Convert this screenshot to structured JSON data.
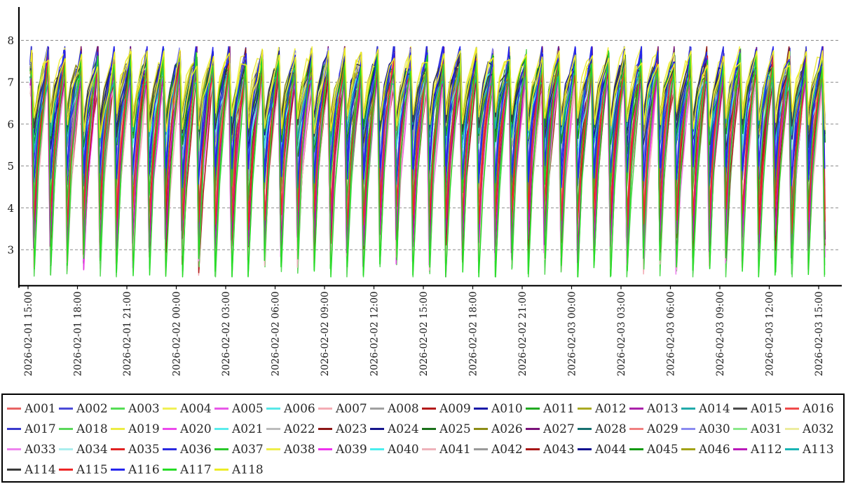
{
  "chart_data": {
    "type": "line",
    "title": "",
    "x_axis": {
      "start": "2026-02-01 15:00",
      "end": "2026-02-03 15:00",
      "tick_interval_hours": 3,
      "tick_labels": [
        "2026-02-01 15:00",
        "2026-02-01 18:00",
        "2026-02-01 21:00",
        "2026-02-02 00:00",
        "2026-02-02 03:00",
        "2026-02-02 06:00",
        "2026-02-02 09:00",
        "2026-02-02 12:00",
        "2026-02-02 15:00",
        "2026-02-02 18:00",
        "2026-02-02 21:00",
        "2026-02-03 00:00",
        "2026-02-03 03:00",
        "2026-02-03 06:00",
        "2026-02-03 09:00",
        "2026-02-03 12:00",
        "2026-02-03 15:00"
      ]
    },
    "y_axis": {
      "ticks": [
        8,
        7,
        6,
        5,
        4,
        3
      ],
      "range": [
        2.2,
        8.8
      ],
      "grid": "dashed"
    },
    "period_hours": 1,
    "total_hours": 48.4,
    "waveform": {
      "peak_at": 0.22,
      "trough_at": 0.36,
      "mid1_at": 0.62,
      "mid2_at": 0.92,
      "mid1_frac": 0.48,
      "mid2_frac": 0.78,
      "peak_jitter": 0.5,
      "trough_jitter": 0.55,
      "value_clamp": [
        2.35,
        7.85
      ]
    },
    "series": [
      {
        "name": "A001",
        "color": "#e86464",
        "peak": 7.35,
        "trough": 3.6
      },
      {
        "name": "A002",
        "color": "#4a4ad8",
        "peak": 7.75,
        "trough": 4.6
      },
      {
        "name": "A003",
        "color": "#55dd55",
        "peak": 7.3,
        "trough": 2.5
      },
      {
        "name": "A004",
        "color": "#f0f055",
        "peak": 7.65,
        "trough": 5.9
      },
      {
        "name": "A005",
        "color": "#e858e8",
        "peak": 7.2,
        "trough": 3.0
      },
      {
        "name": "A006",
        "color": "#58e8e8",
        "peak": 7.1,
        "trough": 5.6
      },
      {
        "name": "A007",
        "color": "#f4acb4",
        "peak": 7.0,
        "trough": 2.75
      },
      {
        "name": "A008",
        "color": "#a0a0a0",
        "peak": 7.15,
        "trough": 5.8
      },
      {
        "name": "A009",
        "color": "#b31a1a",
        "peak": 7.1,
        "trough": 3.0
      },
      {
        "name": "A010",
        "color": "#1a1aa8",
        "peak": 7.5,
        "trough": 5.9
      },
      {
        "name": "A011",
        "color": "#22aa22",
        "peak": 7.4,
        "trough": 5.7
      },
      {
        "name": "A012",
        "color": "#aaaa22",
        "peak": 7.3,
        "trough": 6.0
      },
      {
        "name": "A013",
        "color": "#aa22aa",
        "peak": 7.25,
        "trough": 3.2
      },
      {
        "name": "A014",
        "color": "#22aaaa",
        "peak": 7.2,
        "trough": 5.8
      },
      {
        "name": "A015",
        "color": "#4a4a4a",
        "peak": 7.3,
        "trough": 5.95
      },
      {
        "name": "A016",
        "color": "#f04a4a",
        "peak": 7.4,
        "trough": 3.9
      },
      {
        "name": "A017",
        "color": "#3a3acc",
        "peak": 7.7,
        "trough": 4.8
      },
      {
        "name": "A018",
        "color": "#5ad85a",
        "peak": 7.55,
        "trough": 2.6
      },
      {
        "name": "A019",
        "color": "#ecec44",
        "peak": 7.6,
        "trough": 6.1
      },
      {
        "name": "A020",
        "color": "#ec4aec",
        "peak": 7.3,
        "trough": 3.1
      },
      {
        "name": "A021",
        "color": "#5aecec",
        "peak": 7.15,
        "trough": 5.7
      },
      {
        "name": "A022",
        "color": "#bcbcbc",
        "peak": 7.2,
        "trough": 5.9
      },
      {
        "name": "A023",
        "color": "#8c1616",
        "peak": 7.65,
        "trough": 3.4
      },
      {
        "name": "A024",
        "color": "#16168c",
        "peak": 7.45,
        "trough": 5.85
      },
      {
        "name": "A025",
        "color": "#1a701a",
        "peak": 7.5,
        "trough": 5.75
      },
      {
        "name": "A026",
        "color": "#8c8c16",
        "peak": 7.35,
        "trough": 6.05
      },
      {
        "name": "A027",
        "color": "#7a127a",
        "peak": 7.7,
        "trough": 3.3
      },
      {
        "name": "A028",
        "color": "#167070",
        "peak": 7.25,
        "trough": 5.8
      },
      {
        "name": "A029",
        "color": "#f08080",
        "peak": 7.3,
        "trough": 3.7
      },
      {
        "name": "A030",
        "color": "#8a8af0",
        "peak": 7.6,
        "trough": 4.9
      },
      {
        "name": "A031",
        "color": "#8ae88a",
        "peak": 7.4,
        "trough": 5.6
      },
      {
        "name": "A032",
        "color": "#ecec9e",
        "peak": 7.5,
        "trough": 6.0
      },
      {
        "name": "A033",
        "color": "#ee84ee",
        "peak": 7.2,
        "trough": 2.9
      },
      {
        "name": "A034",
        "color": "#aaeeee",
        "peak": 7.1,
        "trough": 5.65
      },
      {
        "name": "A035",
        "color": "#e02222",
        "peak": 7.35,
        "trough": 3.5
      },
      {
        "name": "A036",
        "color": "#2a2ae0",
        "peak": 7.65,
        "trough": 4.7
      },
      {
        "name": "A037",
        "color": "#2ac82a",
        "peak": 7.45,
        "trough": 4.3
      },
      {
        "name": "A038",
        "color": "#eeee4a",
        "peak": 7.55,
        "trough": 6.0
      },
      {
        "name": "A039",
        "color": "#ee32ee",
        "peak": 7.25,
        "trough": 3.05
      },
      {
        "name": "A040",
        "color": "#4aeeee",
        "peak": 7.15,
        "trough": 5.7
      },
      {
        "name": "A041",
        "color": "#eeb2ba",
        "peak": 7.05,
        "trough": 2.8
      },
      {
        "name": "A042",
        "color": "#9a9a9a",
        "peak": 7.2,
        "trough": 5.85
      },
      {
        "name": "A043",
        "color": "#a81616",
        "peak": 7.3,
        "trough": 3.1
      },
      {
        "name": "A044",
        "color": "#121290",
        "peak": 7.5,
        "trough": 5.9
      },
      {
        "name": "A045",
        "color": "#129a12",
        "peak": 7.4,
        "trough": 5.75
      },
      {
        "name": "A046",
        "color": "#a2a216",
        "peak": 7.3,
        "trough": 6.0
      },
      {
        "name": "A112",
        "color": "#ba1aba",
        "peak": 7.25,
        "trough": 3.15
      },
      {
        "name": "A113",
        "color": "#1ab4b4",
        "peak": 7.2,
        "trough": 5.75
      },
      {
        "name": "A114",
        "color": "#3a3a3a",
        "peak": 7.45,
        "trough": 5.95
      },
      {
        "name": "A115",
        "color": "#ee2626",
        "peak": 7.4,
        "trough": 3.8
      },
      {
        "name": "A116",
        "color": "#2626ee",
        "peak": 7.7,
        "trough": 4.75
      },
      {
        "name": "A117",
        "color": "#26dc26",
        "peak": 7.5,
        "trough": 2.55
      },
      {
        "name": "A118",
        "color": "#ecec26",
        "peak": 7.6,
        "trough": 6.05
      }
    ],
    "colors": {
      "axis": "#000000",
      "grid": "#8a8a8a",
      "tick_text": "#1a1a1a"
    }
  }
}
